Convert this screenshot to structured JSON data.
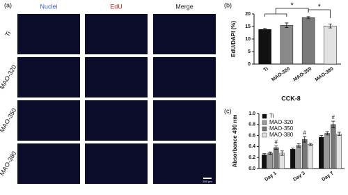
{
  "figure": {
    "panel_labels": [
      "(a)",
      "(b)",
      "(c)"
    ],
    "image_grid": {
      "columns": [
        "Nuclei",
        "EdU",
        "Merge"
      ],
      "rows": [
        "Ti",
        "MAO-320",
        "MAO-350",
        "MAO-380"
      ],
      "scale_bar": "200 μm"
    }
  },
  "chart_data": [
    {
      "type": "bar",
      "ylabel": "EdU/DAPI (%)",
      "categories": [
        "Ti",
        "MAO-320",
        "MAO-350",
        "MAO-380"
      ],
      "values": [
        13.8,
        15.5,
        18.5,
        15.2
      ],
      "errors": [
        0.5,
        0.9,
        0.4,
        0.8
      ],
      "colors": [
        "#111111",
        "#8a8a8a",
        "#7a7a7a",
        "#e2e2e2"
      ],
      "annotations": [
        "*",
        "*"
      ],
      "ylim": [
        0,
        20
      ],
      "yticks": [
        0,
        5,
        10,
        15,
        20
      ]
    },
    {
      "type": "grouped-bar",
      "title": "CCK-8",
      "ylabel": "Absorbance 490 nm",
      "categories": [
        "Day 1",
        "Day 3",
        "Day 7"
      ],
      "series": [
        {
          "name": "Ti",
          "color": "#111111",
          "values": [
            0.25,
            0.35,
            0.57
          ],
          "errors": [
            0.02,
            0.02,
            0.03
          ]
        },
        {
          "name": "MAO-320",
          "color": "#9a9a9a",
          "values": [
            0.28,
            0.42,
            0.64
          ],
          "errors": [
            0.02,
            0.03,
            0.03
          ]
        },
        {
          "name": "MAO-350",
          "color": "#777777",
          "values": [
            0.38,
            0.53,
            0.8
          ],
          "errors": [
            0.03,
            0.05,
            0.06
          ],
          "annotations": [
            "#",
            "#",
            "#"
          ]
        },
        {
          "name": "MAO-380",
          "color": "#e2e2e2",
          "values": [
            0.28,
            0.44,
            0.63
          ],
          "errors": [
            0.04,
            0.02,
            0.03
          ]
        }
      ],
      "legend": "upper-left",
      "ylim": [
        0,
        1
      ],
      "yticks": [
        {
          "value": 0,
          "label": "0.0"
        },
        0.2,
        0.4,
        0.6,
        0.8,
        {
          "value": 1,
          "label": "1.0"
        }
      ]
    }
  ]
}
